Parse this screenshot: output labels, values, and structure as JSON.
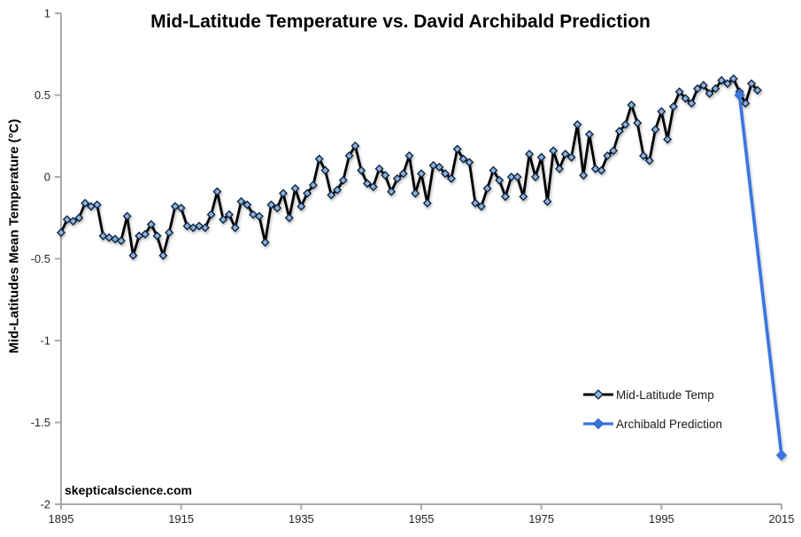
{
  "watermark": "skepticalscience.com",
  "colors": {
    "temp_line": "#000000",
    "temp_marker_fill": "#8DB4E2",
    "temp_marker_stroke": "#10253F",
    "prediction_line": "#3B76E0",
    "axis": "#A9A9A9",
    "tick_text": "#262626",
    "background": "#FFFFFF"
  },
  "chart_data": {
    "type": "line",
    "title": "Mid-Latitude Temperature vs. David Archibald Prediction",
    "xlabel": "",
    "ylabel": "Mid-Latitudes Mean Temperature (°C)",
    "xlim": [
      1895,
      2015
    ],
    "ylim": [
      -2,
      1
    ],
    "x_ticks": [
      "1895",
      "1915",
      "1935",
      "1955",
      "1975",
      "1995",
      "2015"
    ],
    "y_ticks": [
      "1",
      "0.5",
      "0",
      "-0.5",
      "-1",
      "-1.5",
      "-2"
    ],
    "grid": false,
    "legend_position": "lower-right",
    "series": [
      {
        "name": "Mid-Latitude Temp",
        "style": "line-with-diamond-markers",
        "x_start": 1895,
        "x_step": 1,
        "values": [
          -0.34,
          -0.26,
          -0.27,
          -0.25,
          -0.16,
          -0.18,
          -0.17,
          -0.36,
          -0.37,
          -0.38,
          -0.39,
          -0.24,
          -0.48,
          -0.36,
          -0.35,
          -0.29,
          -0.36,
          -0.48,
          -0.34,
          -0.18,
          -0.19,
          -0.3,
          -0.31,
          -0.3,
          -0.31,
          -0.23,
          -0.09,
          -0.26,
          -0.23,
          -0.31,
          -0.15,
          -0.17,
          -0.23,
          -0.24,
          -0.4,
          -0.17,
          -0.19,
          -0.1,
          -0.25,
          -0.07,
          -0.18,
          -0.1,
          -0.05,
          0.11,
          0.04,
          -0.11,
          -0.08,
          -0.02,
          0.13,
          0.19,
          0.04,
          -0.04,
          -0.06,
          0.05,
          0.01,
          -0.09,
          -0.01,
          0.02,
          0.13,
          -0.1,
          0.02,
          -0.16,
          0.07,
          0.06,
          0.02,
          -0.01,
          0.17,
          0.11,
          0.09,
          -0.16,
          -0.18,
          -0.07,
          0.04,
          -0.02,
          -0.12,
          0.0,
          0.0,
          -0.12,
          0.14,
          0.0,
          0.12,
          -0.15,
          0.16,
          0.05,
          0.14,
          0.12,
          0.32,
          0.01,
          0.26,
          0.05,
          0.04,
          0.13,
          0.16,
          0.28,
          0.32,
          0.44,
          0.33,
          0.13,
          0.1,
          0.29,
          0.4,
          0.23,
          0.43,
          0.52,
          0.48,
          0.45,
          0.54,
          0.56,
          0.51,
          0.54,
          0.59,
          0.57,
          0.6,
          0.52,
          0.45,
          0.57,
          0.53
        ]
      },
      {
        "name": "Archibald Prediction",
        "style": "line-with-diamond-markers",
        "x": [
          2008,
          2015
        ],
        "values": [
          0.5,
          -1.7
        ]
      }
    ]
  }
}
